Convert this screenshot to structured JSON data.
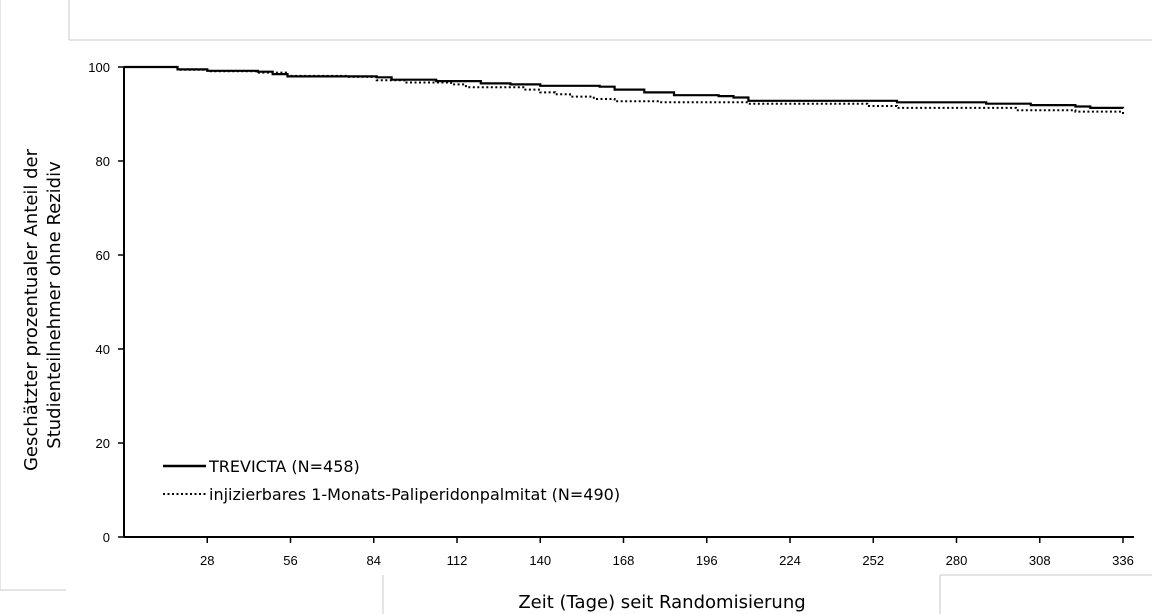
{
  "chart_data": {
    "type": "line",
    "title": "",
    "xlabel": "Zeit (Tage) seit Randomisierung",
    "ylabel_lines": [
      "Geschätzter prozentualer Anteil der",
      "Studienteilnehmer ohne Rezidiv"
    ],
    "xlim": [
      0,
      336
    ],
    "ylim": [
      0,
      100
    ],
    "x_ticks": [
      28,
      56,
      84,
      112,
      140,
      168,
      196,
      224,
      252,
      280,
      308,
      336
    ],
    "y_ticks": [
      0,
      20,
      40,
      60,
      80,
      100
    ],
    "legend_placement": "bottom-left",
    "grid": false,
    "series": [
      {
        "name": "TREVICTA (N=458)",
        "style": "solid",
        "color": "#000000",
        "x": [
          0,
          12,
          18,
          28,
          45,
          50,
          55,
          85,
          90,
          105,
          120,
          130,
          140,
          160,
          165,
          175,
          185,
          200,
          205,
          210,
          260,
          290,
          305,
          320,
          325,
          336
        ],
        "y": [
          100,
          100,
          99.5,
          99.2,
          99,
          98.5,
          98,
          97.8,
          97.3,
          97,
          96.5,
          96.3,
          96,
          95.8,
          95.2,
          94.6,
          94,
          93.8,
          93.5,
          92.8,
          92.5,
          92.2,
          91.9,
          91.6,
          91.3,
          91.2
        ]
      },
      {
        "name": "injizierbares 1-Monats-Paliperidonpalmitat (N=490)",
        "style": "dotted",
        "color": "#000000",
        "x": [
          0,
          12,
          18,
          28,
          45,
          55,
          75,
          85,
          95,
          110,
          115,
          135,
          140,
          145,
          150,
          158,
          165,
          180,
          210,
          250,
          260,
          300,
          320,
          336
        ],
        "y": [
          100,
          100,
          99.4,
          99.1,
          98.8,
          98.1,
          97.9,
          97.2,
          96.7,
          96.3,
          95.7,
          95.2,
          94.6,
          94.2,
          93.7,
          93.2,
          92.7,
          92.5,
          92.2,
          91.7,
          91.3,
          90.8,
          90.5,
          90
        ]
      }
    ]
  }
}
